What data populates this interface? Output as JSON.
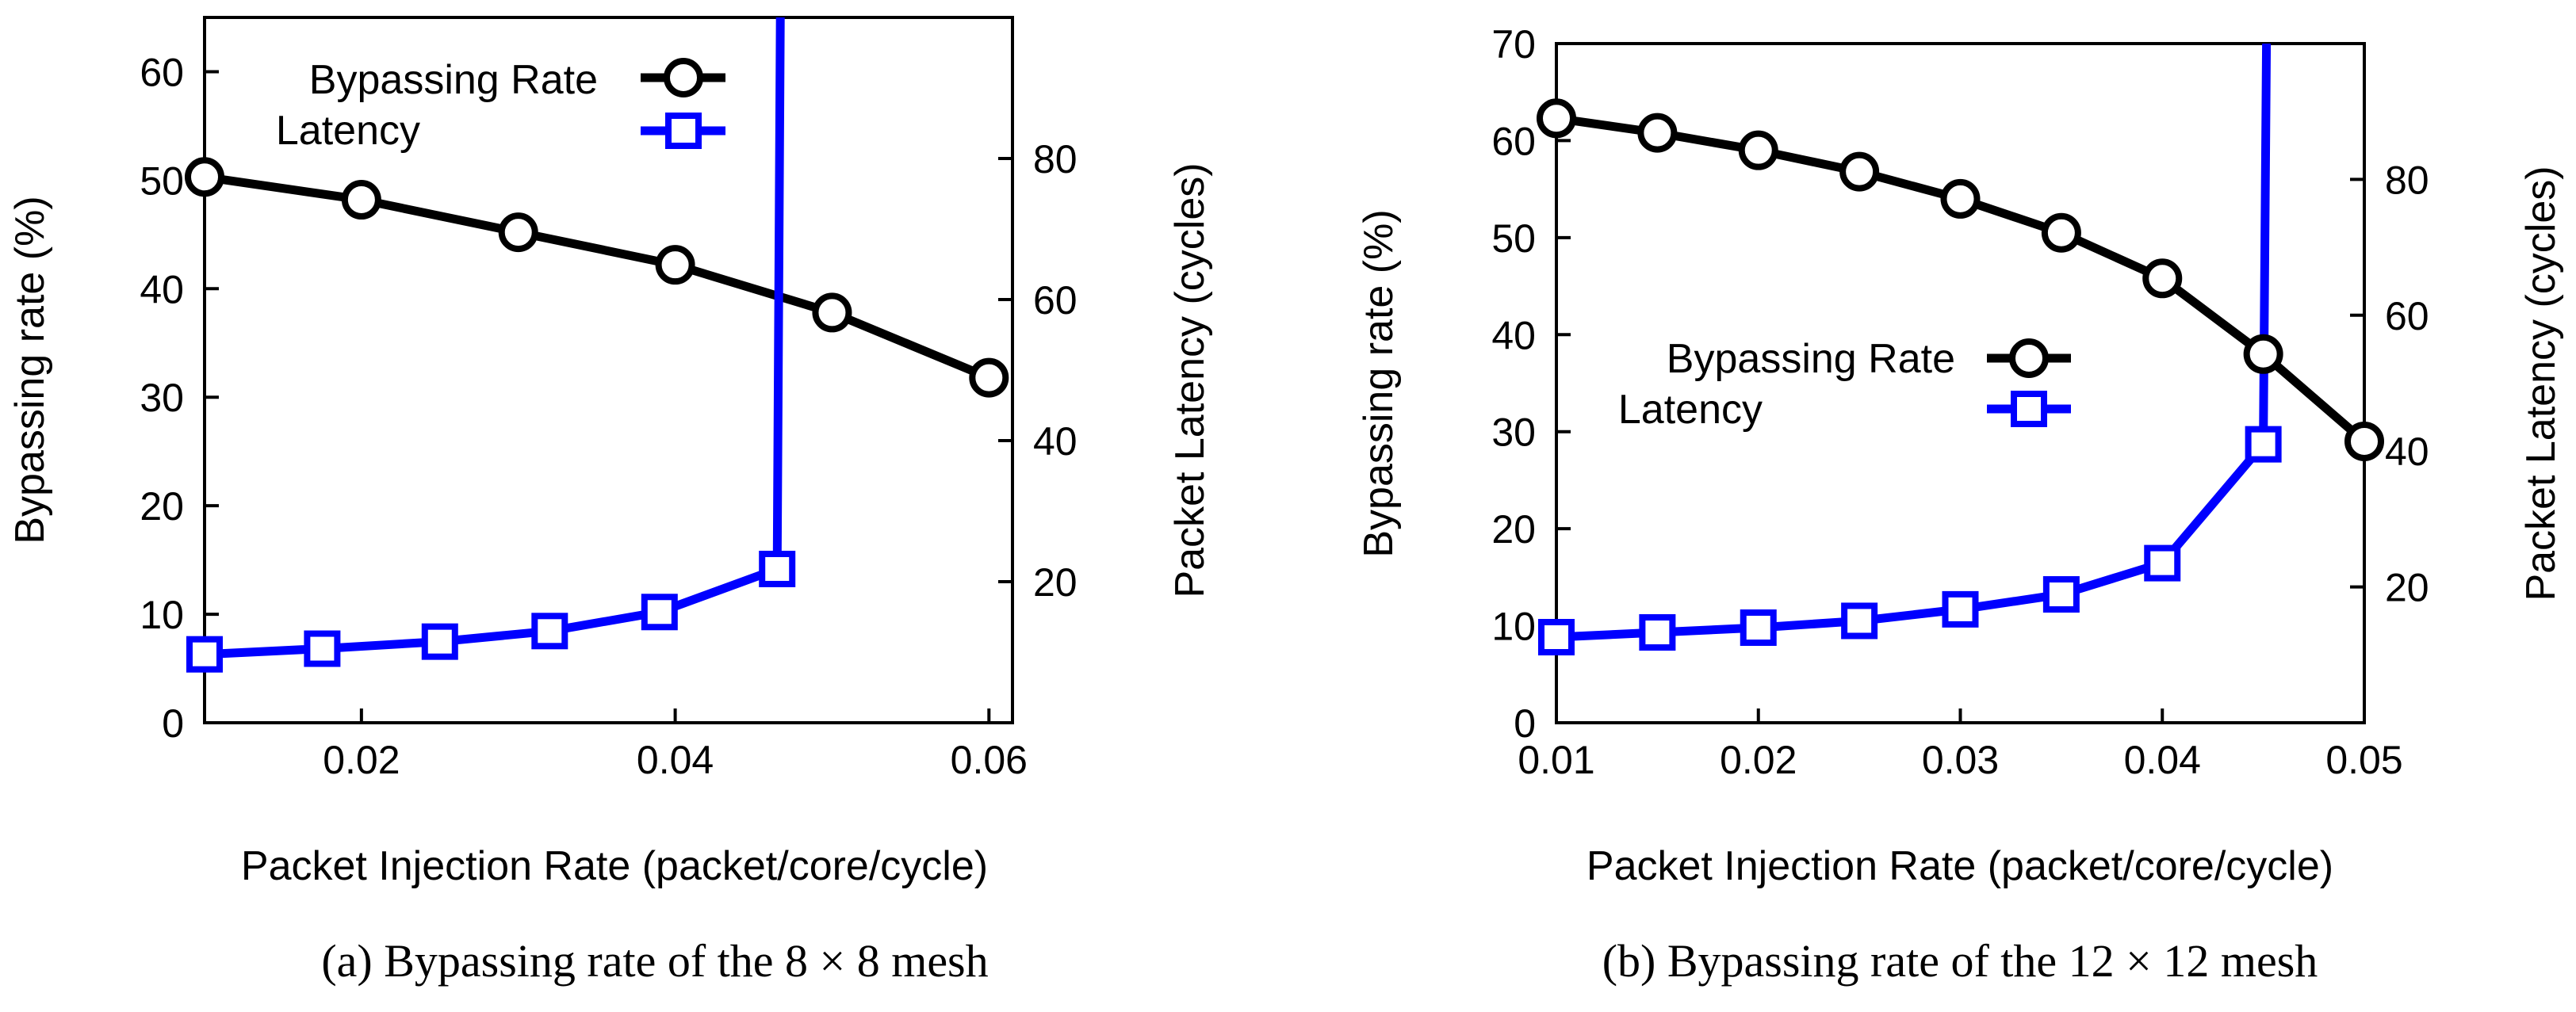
{
  "chart_data": [
    {
      "type": "line",
      "panel": "a",
      "caption": "(a)  Bypassing rate of the 8 × 8 mesh",
      "xlabel": "Packet Injection Rate (packet/core/cycle)",
      "ylabel": "Bypassing rate (%)",
      "y2label": "Packet Latency (cycles)",
      "xlim": [
        0.01,
        0.0615
      ],
      "ylim": [
        0,
        65
      ],
      "y2lim": [
        0,
        100
      ],
      "xticks": [
        0.02,
        0.04,
        0.06
      ],
      "xtick_labels": [
        "0.02",
        "0.04",
        "0.06"
      ],
      "yticks": [
        0,
        10,
        20,
        30,
        40,
        50,
        60
      ],
      "ytick_labels": [
        "0",
        "10",
        "20",
        "30",
        "40",
        "50",
        "60"
      ],
      "y2ticks": [
        20,
        40,
        60,
        80
      ],
      "y2tick_labels": [
        "20",
        "40",
        "60",
        "80"
      ],
      "legend_position": "top-left",
      "series": [
        {
          "name": "Bypassing Rate",
          "axis": "left",
          "color": "#000000",
          "marker": "circle",
          "x": [
            0.01,
            0.02,
            0.03,
            0.04,
            0.05,
            0.06
          ],
          "y": [
            50.3,
            48.2,
            45.2,
            42.2,
            37.8,
            31.8
          ]
        },
        {
          "name": "Latency",
          "axis": "right",
          "color": "#0000ff",
          "marker": "square",
          "x": [
            0.01,
            0.0175,
            0.025,
            0.032,
            0.039,
            0.0465
          ],
          "y": [
            9.7,
            10.5,
            11.5,
            13.0,
            15.7,
            21.8
          ],
          "vertical_rise_to": 100
        }
      ]
    },
    {
      "type": "line",
      "panel": "b",
      "caption": "(b)  Bypassing rate of the 12 × 12 mesh",
      "xlabel": "Packet Injection Rate (packet/core/cycle)",
      "ylabel": "Bypassing rate (%)",
      "y2label": "Packet Latency (cycles)",
      "xlim": [
        0.01,
        0.05
      ],
      "ylim": [
        0,
        70
      ],
      "y2lim": [
        0,
        100
      ],
      "xticks": [
        0.01,
        0.02,
        0.03,
        0.04,
        0.05
      ],
      "xtick_labels": [
        "0.01",
        "0.02",
        "0.03",
        "0.04",
        "0.05"
      ],
      "yticks": [
        0,
        10,
        20,
        30,
        40,
        50,
        60,
        70
      ],
      "ytick_labels": [
        "0",
        "10",
        "20",
        "30",
        "40",
        "50",
        "60",
        "70"
      ],
      "y2ticks": [
        20,
        40,
        60,
        80
      ],
      "y2tick_labels": [
        "20",
        "40",
        "60",
        "80"
      ],
      "legend_position": "center-left",
      "series": [
        {
          "name": "Bypassing Rate",
          "axis": "left",
          "color": "#000000",
          "marker": "circle",
          "x": [
            0.01,
            0.015,
            0.02,
            0.025,
            0.03,
            0.035,
            0.04,
            0.045,
            0.05
          ],
          "y": [
            62.3,
            60.8,
            59.0,
            56.8,
            54.0,
            50.5,
            45.8,
            38.0,
            29.0
          ]
        },
        {
          "name": "Latency",
          "axis": "right",
          "color": "#0000ff",
          "marker": "square",
          "x": [
            0.01,
            0.015,
            0.02,
            0.025,
            0.03,
            0.035,
            0.04,
            0.045
          ],
          "y": [
            12.6,
            13.3,
            14.0,
            15.0,
            16.7,
            18.9,
            23.5,
            41.0
          ],
          "vertical_rise_to": 100
        }
      ]
    }
  ]
}
